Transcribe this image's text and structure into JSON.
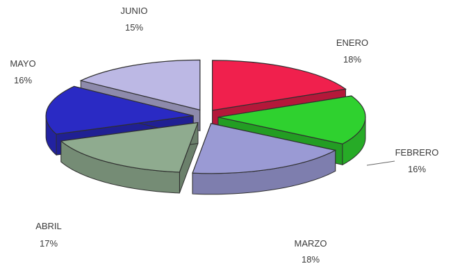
{
  "chart_data": {
    "type": "pie",
    "title": "",
    "categories": [
      "ENERO",
      "FEBRERO",
      "MARZO",
      "ABRIL",
      "MAYO",
      "JUNIO"
    ],
    "values": [
      18,
      16,
      18,
      17,
      16,
      15
    ],
    "value_labels": [
      "18%",
      "16%",
      "18%",
      "17%",
      "16%",
      "15%"
    ],
    "colors": [
      "#f0204d",
      "#2fd12f",
      "#9a9ad4",
      "#8fab8f",
      "#2a2ac4",
      "#bcb8e4"
    ],
    "exploded": true,
    "three_d": true,
    "legend": "none"
  }
}
